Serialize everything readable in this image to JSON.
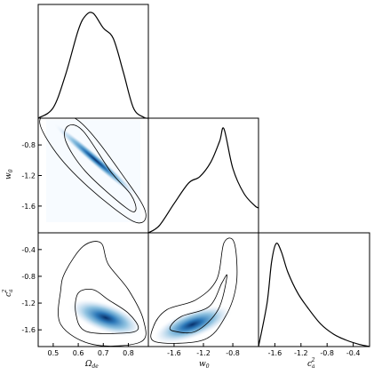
{
  "chart_data": {
    "type": "corner",
    "parameters": [
      {
        "id": "omega",
        "label": "Ω",
        "label_sub": "de",
        "range": [
          0.44,
          0.88
        ],
        "ticks": [
          0.5,
          0.6,
          0.7,
          0.8
        ],
        "tick_labels": [
          "0.5",
          "0.6",
          "0.7",
          "0.8"
        ]
      },
      {
        "id": "w0",
        "label": "w",
        "label_sub": "0",
        "range": [
          -1.95,
          -0.45
        ],
        "ticks": [
          -1.6,
          -1.2,
          -0.8
        ],
        "tick_labels": [
          "-1.6",
          "-1.2",
          "-0.8"
        ]
      },
      {
        "id": "ca2",
        "label": "c",
        "label_sup": "2",
        "label_sub": "a",
        "range": [
          -1.85,
          -0.15
        ],
        "ticks": [
          -1.6,
          -1.2,
          -0.8,
          -0.4
        ],
        "tick_labels": [
          "-1.6",
          "-1.2",
          "-0.8",
          "-0.4"
        ]
      }
    ],
    "marginals": [
      {
        "param": "omega",
        "x": [
          0.44,
          0.5,
          0.55,
          0.6,
          0.63,
          0.66,
          0.7,
          0.74,
          0.78,
          0.82,
          0.86,
          0.88
        ],
        "y": [
          0.0,
          0.1,
          0.42,
          0.84,
          0.98,
          1.0,
          0.86,
          0.76,
          0.44,
          0.1,
          0.01,
          0.0
        ]
      },
      {
        "param": "w0",
        "x": [
          -1.95,
          -1.8,
          -1.6,
          -1.4,
          -1.25,
          -1.1,
          -0.98,
          -0.92,
          -0.8,
          -0.65,
          -0.5,
          -0.45
        ],
        "y": [
          0.0,
          0.07,
          0.28,
          0.48,
          0.54,
          0.68,
          0.88,
          1.0,
          0.62,
          0.38,
          0.26,
          0.24
        ]
      },
      {
        "param": "ca2",
        "x": [
          -1.85,
          -1.72,
          -1.65,
          -1.58,
          -1.5,
          -1.4,
          -1.25,
          -1.1,
          -0.9,
          -0.7,
          -0.5,
          -0.3,
          -0.15
        ],
        "y": [
          0.0,
          0.42,
          0.82,
          1.0,
          0.92,
          0.72,
          0.52,
          0.38,
          0.22,
          0.12,
          0.06,
          0.02,
          0.0
        ]
      }
    ],
    "joints": [
      {
        "x": "omega",
        "y": "w0",
        "peak": [
          0.67,
          -1.0
        ],
        "corr": -0.95,
        "sx": 0.06,
        "sy": 0.18,
        "contour_1sigma": [
          [
            0.56,
            -0.55
          ],
          [
            0.62,
            -0.62
          ],
          [
            0.73,
            -1.15
          ],
          [
            0.81,
            -1.45
          ],
          [
            0.83,
            -1.65
          ],
          [
            0.79,
            -1.62
          ],
          [
            0.63,
            -1.15
          ],
          [
            0.55,
            -0.75
          ]
        ],
        "contour_2sigma": [
          [
            0.45,
            -0.45
          ],
          [
            0.6,
            -0.48
          ],
          [
            0.8,
            -1.3
          ],
          [
            0.87,
            -1.7
          ],
          [
            0.82,
            -1.8
          ],
          [
            0.64,
            -1.35
          ],
          [
            0.5,
            -0.85
          ]
        ]
      },
      {
        "x": "omega",
        "y": "ca2",
        "peak": [
          0.71,
          -1.42
        ],
        "corr": -0.5,
        "sx": 0.06,
        "sy": 0.16,
        "contour_1sigma": [
          [
            0.6,
            -1.05
          ],
          [
            0.66,
            -1.0
          ],
          [
            0.72,
            -1.15
          ],
          [
            0.8,
            -1.35
          ],
          [
            0.84,
            -1.58
          ],
          [
            0.78,
            -1.65
          ],
          [
            0.63,
            -1.62
          ],
          [
            0.59,
            -1.35
          ]
        ],
        "contour_2sigma": [
          [
            0.55,
            -0.72
          ],
          [
            0.62,
            -0.35
          ],
          [
            0.69,
            -0.3
          ],
          [
            0.72,
            -0.62
          ],
          [
            0.8,
            -1.0
          ],
          [
            0.86,
            -1.45
          ],
          [
            0.85,
            -1.78
          ],
          [
            0.66,
            -1.82
          ],
          [
            0.53,
            -1.52
          ],
          [
            0.53,
            -1.0
          ]
        ]
      },
      {
        "x": "w0",
        "y": "ca2",
        "peak": [
          -1.35,
          -1.52
        ],
        "corr": 0.55,
        "sx": 0.22,
        "sy": 0.16,
        "contour_1sigma": [
          [
            -1.6,
            -1.62
          ],
          [
            -1.3,
            -1.62
          ],
          [
            -1.0,
            -1.3
          ],
          [
            -0.88,
            -0.8
          ],
          [
            -0.95,
            -0.9
          ],
          [
            -1.12,
            -1.25
          ],
          [
            -1.5,
            -1.4
          ],
          [
            -1.65,
            -1.55
          ]
        ],
        "contour_2sigma": [
          [
            -1.85,
            -1.78
          ],
          [
            -1.2,
            -1.75
          ],
          [
            -0.9,
            -1.4
          ],
          [
            -0.75,
            -0.9
          ],
          [
            -0.78,
            -0.3
          ],
          [
            -0.92,
            -0.3
          ],
          [
            -1.02,
            -0.85
          ],
          [
            -1.3,
            -1.15
          ],
          [
            -1.7,
            -1.3
          ],
          [
            -1.88,
            -1.55
          ]
        ]
      }
    ]
  }
}
